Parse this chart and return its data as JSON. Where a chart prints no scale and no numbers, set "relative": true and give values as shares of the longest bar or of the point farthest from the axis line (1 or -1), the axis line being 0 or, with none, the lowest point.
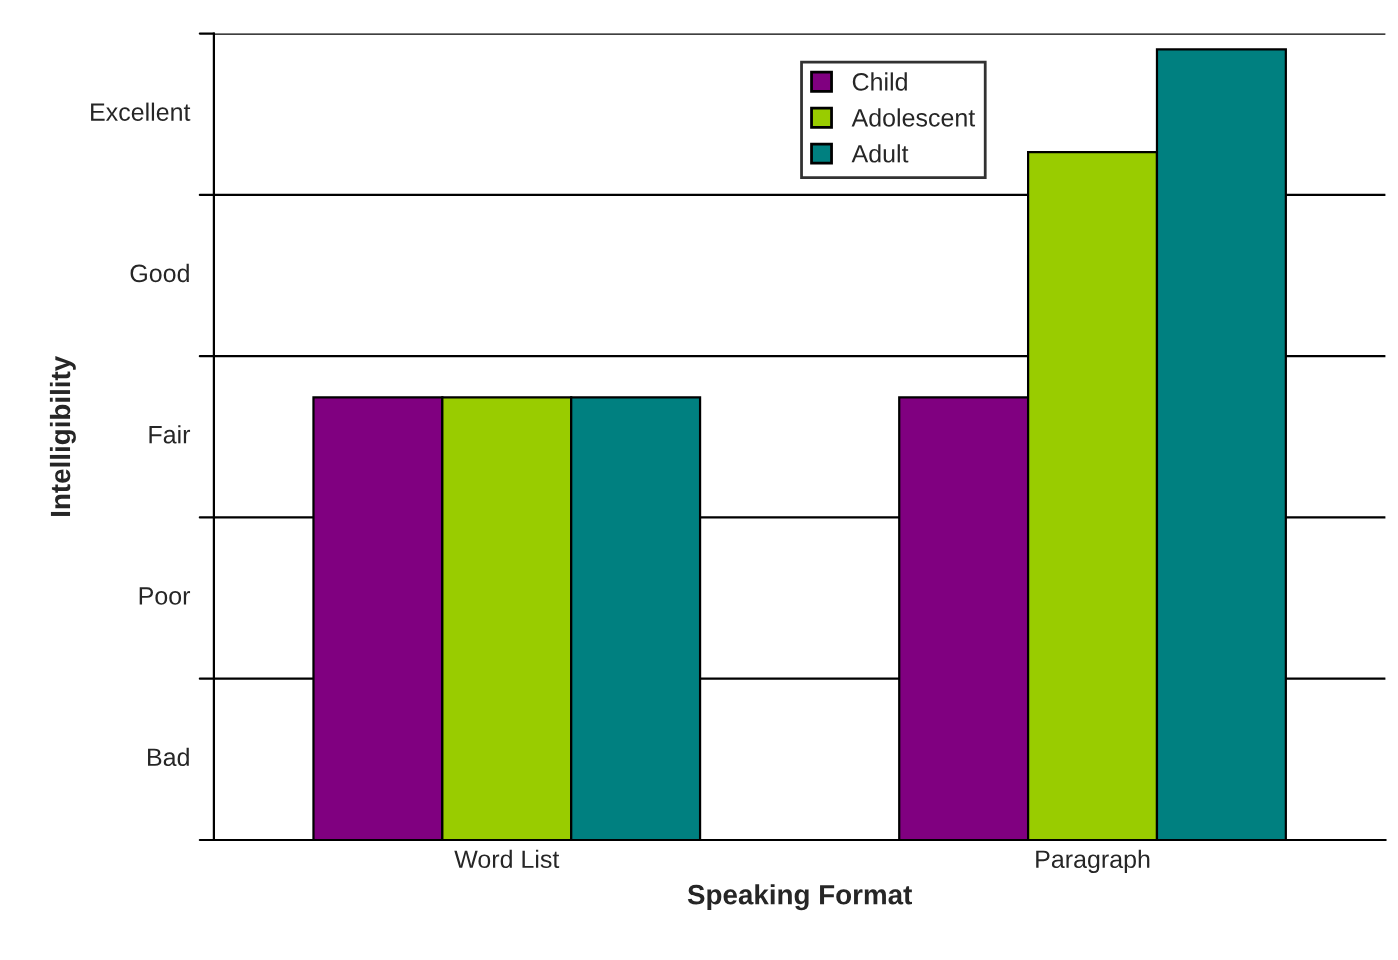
{
  "chart_data": {
    "type": "bar",
    "xlabel": "Speaking Format",
    "ylabel": "Intelligibility",
    "categories": [
      "Word List",
      "Paragraph"
    ],
    "series": [
      {
        "name": "Child",
        "color": "#800080",
        "values": [
          0.56,
          0.56
        ]
      },
      {
        "name": "Adolescent",
        "color": "#99cc00",
        "values": [
          0.56,
          0.87
        ]
      },
      {
        "name": "Adult",
        "color": "#008080",
        "values": [
          0.56,
          1
        ]
      }
    ],
    "relative": true,
    "annotations": [
      "Bad",
      "Poor",
      "Fair",
      "Good",
      "Excellent"
    ],
    "grid": "y",
    "legend": "top"
  }
}
